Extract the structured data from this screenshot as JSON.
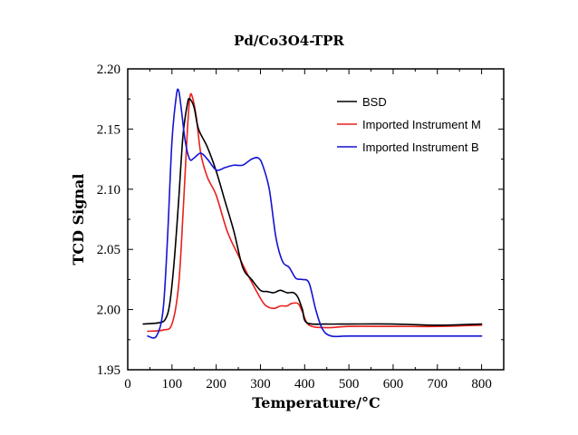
{
  "chart_data": {
    "type": "line",
    "title": "Pd/Co3O4-TPR",
    "xlabel": "Temperature/°C",
    "ylabel": "TCD Signal",
    "xlim": [
      0,
      850
    ],
    "ylim": [
      1.95,
      2.2
    ],
    "xticks": [
      0,
      100,
      200,
      300,
      400,
      500,
      600,
      700,
      800
    ],
    "yticks": [
      1.95,
      2.0,
      2.05,
      2.1,
      2.15,
      2.2
    ],
    "xtick_labels": [
      "0",
      "100",
      "200",
      "300",
      "400",
      "500",
      "600",
      "700",
      "800"
    ],
    "ytick_labels": [
      "1.95",
      "2.00",
      "2.05",
      "2.10",
      "2.15",
      "2.20"
    ],
    "legend_position": "top-right",
    "series": [
      {
        "name": "BSD",
        "color": "#000000",
        "x": [
          35,
          70,
          85,
          95,
          105,
          115,
          125,
          135,
          140,
          150,
          160,
          180,
          200,
          220,
          240,
          260,
          280,
          300,
          315,
          330,
          345,
          360,
          375,
          385,
          395,
          405,
          450,
          500,
          600,
          700,
          800
        ],
        "y": [
          1.988,
          1.989,
          1.992,
          2.005,
          2.04,
          2.09,
          2.145,
          2.171,
          2.175,
          2.168,
          2.15,
          2.135,
          2.115,
          2.09,
          2.065,
          2.035,
          2.025,
          2.016,
          2.015,
          2.014,
          2.016,
          2.014,
          2.014,
          2.01,
          2.0,
          1.989,
          1.988,
          1.988,
          1.988,
          1.987,
          1.988
        ]
      },
      {
        "name": "Imported Instrument M",
        "color": "#e8201c",
        "x": [
          45,
          80,
          100,
          115,
          125,
          135,
          140,
          145,
          155,
          165,
          180,
          200,
          225,
          250,
          270,
          290,
          310,
          330,
          345,
          360,
          370,
          385,
          395,
          410,
          450,
          500,
          600,
          700,
          800
        ],
        "y": [
          1.982,
          1.983,
          1.988,
          2.02,
          2.08,
          2.15,
          2.175,
          2.178,
          2.16,
          2.13,
          2.11,
          2.095,
          2.065,
          2.045,
          2.03,
          2.016,
          2.004,
          2.001,
          2.003,
          2.003,
          2.005,
          2.005,
          1.998,
          1.987,
          1.985,
          1.986,
          1.986,
          1.986,
          1.987
        ]
      },
      {
        "name": "Imported Instrument B",
        "color": "#1414d4",
        "x": [
          45,
          65,
          80,
          90,
          100,
          110,
          115,
          120,
          130,
          140,
          150,
          165,
          180,
          200,
          220,
          240,
          260,
          280,
          295,
          305,
          320,
          335,
          350,
          365,
          380,
          395,
          410,
          425,
          440,
          460,
          500,
          600,
          700,
          800
        ],
        "y": [
          1.978,
          1.978,
          2.0,
          2.06,
          2.14,
          2.178,
          2.182,
          2.17,
          2.14,
          2.125,
          2.126,
          2.13,
          2.125,
          2.116,
          2.118,
          2.12,
          2.12,
          2.125,
          2.126,
          2.12,
          2.1,
          2.06,
          2.04,
          2.035,
          2.026,
          2.025,
          2.022,
          2.0,
          1.984,
          1.978,
          1.978,
          1.978,
          1.978,
          1.978
        ]
      }
    ]
  }
}
